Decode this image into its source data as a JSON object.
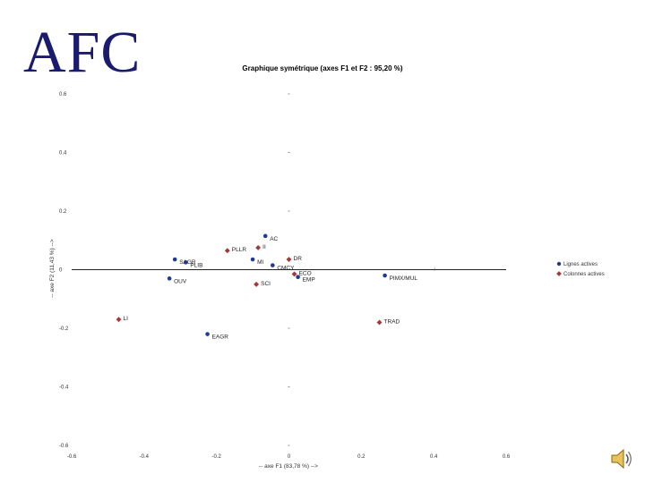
{
  "slide": {
    "title": "AFC"
  },
  "chart_data": {
    "type": "scatter",
    "title": "Graphique symétrique (axes F1 et F2 : 95,20 %)",
    "xlabel": "-- axe F1 (83,78 %) -->",
    "ylabel": "-- axe F2 (11,43 %) -->",
    "xlim": [
      -0.6,
      0.6
    ],
    "ylim": [
      -0.6,
      0.6
    ],
    "xticks": [
      "-0.6",
      "-0.4",
      "-0.2",
      "0",
      "0.2",
      "0.4",
      "0.6"
    ],
    "yticks": [
      "0.6",
      "0.4",
      "0.2",
      "0",
      "-0.2",
      "-0.4",
      "-0.6"
    ],
    "xtick_values": [
      -0.6,
      -0.4,
      -0.2,
      0,
      0.2,
      0.4,
      0.6
    ],
    "ytick_values": [
      0.6,
      0.4,
      0.2,
      0,
      -0.2,
      -0.4,
      -0.6
    ],
    "legend_position": "right",
    "series": [
      {
        "name": "Lignes actives",
        "color": "#1f3a93",
        "points": [
          {
            "label": "AC",
            "x": -0.065,
            "y": 0.115
          },
          {
            "label": "SAGR",
            "x": -0.315,
            "y": 0.035
          },
          {
            "label": "OUV",
            "x": -0.33,
            "y": -0.03
          },
          {
            "label": "PLIB",
            "x": -0.285,
            "y": 0.025
          },
          {
            "label": "MI",
            "x": -0.1,
            "y": 0.035
          },
          {
            "label": "CMCY",
            "x": -0.045,
            "y": 0.015
          },
          {
            "label": "EMP",
            "x": 0.025,
            "y": -0.025
          },
          {
            "label": "PIMX/MUL",
            "x": 0.265,
            "y": -0.02
          },
          {
            "label": "EAGR",
            "x": -0.225,
            "y": -0.22
          }
        ]
      },
      {
        "name": "Colonnes actives",
        "color": "#a33a3a",
        "points": [
          {
            "label": "PLLR",
            "x": -0.17,
            "y": 0.065
          },
          {
            "label": "II",
            "x": -0.085,
            "y": 0.075
          },
          {
            "label": "DR",
            "x": 0.0,
            "y": 0.035
          },
          {
            "label": "ECO",
            "x": 0.015,
            "y": -0.015
          },
          {
            "label": "SCI",
            "x": -0.09,
            "y": -0.05
          },
          {
            "label": "LI",
            "x": -0.47,
            "y": -0.17
          },
          {
            "label": "TRAD",
            "x": 0.25,
            "y": -0.18
          }
        ]
      }
    ]
  }
}
